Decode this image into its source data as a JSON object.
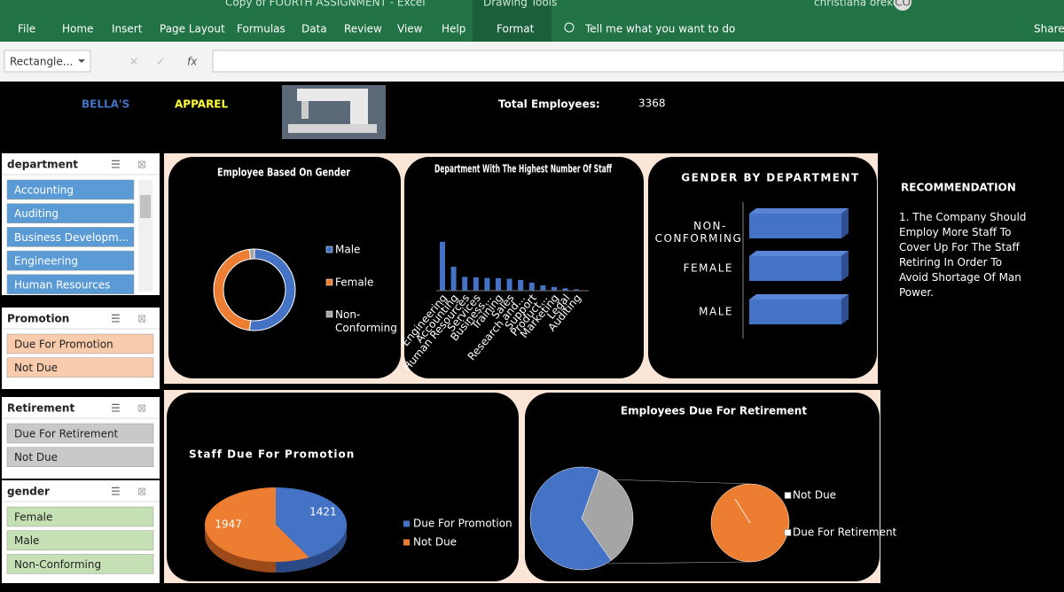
{
  "ribbon": {
    "title": "Copy of FOURTH ASSIGNMENT - Excel",
    "context": "Drawing Tools",
    "user": "christiana oreke",
    "initials": "CO",
    "tabs": [
      "File",
      "Home",
      "Insert",
      "Page Layout",
      "Formulas",
      "Data",
      "Review",
      "View",
      "Help",
      "Format"
    ],
    "tell_me": "Tell me what you want to do",
    "share": "Share"
  },
  "formula_bar": {
    "name_box": "Rectangle...",
    "fx": "fx"
  },
  "dashboard": {
    "brand_1": "BELLA'S",
    "brand_2": "APPAREL",
    "total_label": "Total Employees:",
    "total": 3368
  },
  "slicers": [
    {
      "title": "department",
      "color": "#5b9bd5",
      "items": [
        "Accounting",
        "Auditing",
        "Business Developm...",
        "Engineering",
        "Human Resources"
      ]
    },
    {
      "title": "Promotion",
      "color": "#f8cbad",
      "items": [
        "Due For Promotion",
        "Not Due"
      ]
    },
    {
      "title": "Retirement",
      "color": "#c9c9c9",
      "items": [
        "Due For Retirement",
        "Not Due"
      ]
    },
    {
      "title": "gender",
      "color": "#c5e0b4",
      "items": [
        "Female",
        "Male",
        "Non-Conforming"
      ]
    }
  ],
  "gender_chart": {
    "type": "donut",
    "title": "Employee Based On Gender",
    "series": [
      {
        "name": "Male",
        "color": "#4472c4",
        "value": 1750
      },
      {
        "name": "Female",
        "color": "#ed7d31",
        "value": 1550
      },
      {
        "name": "Non-Conforming",
        "color": "#a5a5a5",
        "value": 68
      }
    ]
  },
  "department_chart": {
    "type": "bar",
    "title": "Department With The Highest Number Of Staff",
    "color": "#4472c4",
    "categories": [
      "Engineering",
      "Accounting",
      "Human Resources",
      "Services",
      "Business...",
      "Training",
      "Sales",
      "Research and...",
      "Support",
      "Product...",
      "Marketing",
      "Legal",
      "Auditing"
    ],
    "values": [
      920,
      450,
      260,
      250,
      240,
      235,
      225,
      200,
      150,
      100,
      70,
      45,
      25
    ],
    "ylim": [
      0,
      1000
    ]
  },
  "gender_department_chart": {
    "type": "hbar",
    "title": "GENDER BY DEPARTMENT",
    "color": "#4472c4",
    "categories": [
      "NON-CONFORMING",
      "FEMALE",
      "MALE"
    ],
    "values": [
      100,
      100,
      100
    ],
    "xlim": [
      0,
      100
    ]
  },
  "recommendation": {
    "title": "RECOMMENDATION",
    "text": "1. The Company Should Employ More Staff To Cover Up For The Staff Retiring In Order To Avoid Shortage Of Man Power."
  },
  "promotion_chart": {
    "type": "pie",
    "title": "Staff Due For Promotion",
    "series": [
      {
        "name": "Due For Promotion",
        "color": "#4472c4",
        "value": 1421
      },
      {
        "name": "Not Due",
        "color": "#ed7d31",
        "value": 1947
      }
    ]
  },
  "retirement_chart": {
    "type": "pie-of-pie",
    "title": "Employees Due For Retirement",
    "series": [
      {
        "name": "Not Due",
        "color": "#4472c4",
        "value": 2200
      },
      {
        "name": "Due For Retirement",
        "color": "#ed7d31",
        "value": 1168
      }
    ],
    "other_color": "#a5a5a5"
  }
}
